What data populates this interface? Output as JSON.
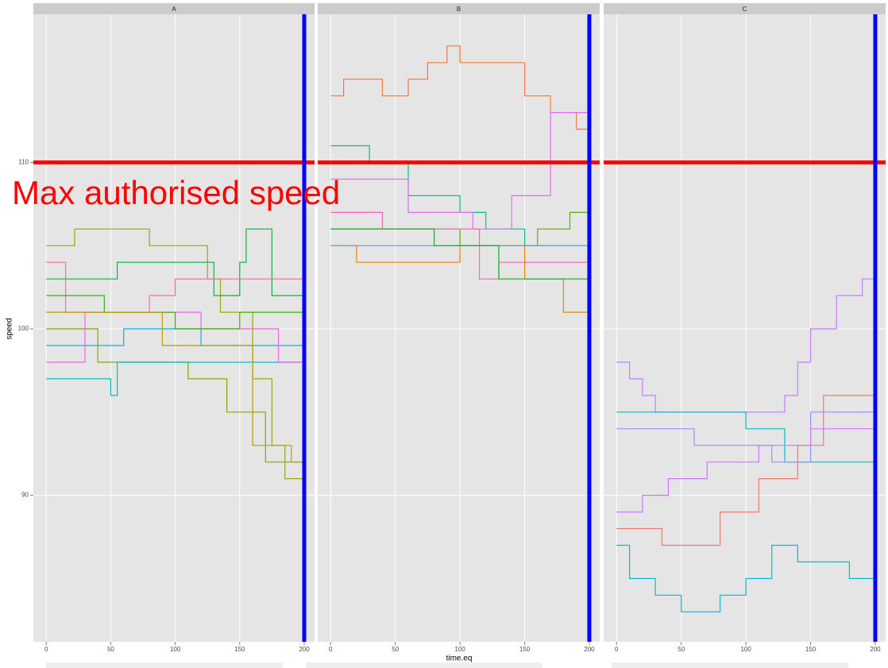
{
  "chart_data": {
    "type": "line",
    "xlabel": "time.eq",
    "ylabel": "speed",
    "xlim": [
      -10,
      208
    ],
    "ylim": [
      81.2,
      118.9
    ],
    "xticks": [
      0,
      50,
      100,
      150,
      200
    ],
    "yticks": [
      90,
      100,
      110
    ],
    "grid": true,
    "hline": {
      "value": 110,
      "color": "#ff0000"
    },
    "vline": {
      "value": 200,
      "color": "#0000ff"
    },
    "annotation": {
      "text": "Max authorised speed",
      "color": "#ff0000"
    },
    "facets": [
      {
        "label": "A",
        "series": [
          {
            "color": "#a3a500",
            "x": [
              0,
              22,
              22,
              80,
              80,
              125,
              125,
              135,
              135,
              160,
              160,
              175,
              175,
              185,
              185,
              200
            ],
            "values": [
              105,
              105,
              106,
              106,
              105,
              105,
              103,
              103,
              101,
              101,
              97,
              97,
              93,
              93,
              91,
              91
            ]
          },
          {
            "color": "#00ba38",
            "x": [
              0,
              55,
              55,
              130,
              130,
              150,
              150,
              155,
              155,
              175,
              175,
              200
            ],
            "values": [
              103,
              103,
              104,
              104,
              102,
              102,
              104,
              104,
              106,
              106,
              102,
              102
            ]
          },
          {
            "color": "#ff67a4",
            "x": [
              0,
              15,
              15,
              80,
              80,
              100,
              100,
              200
            ],
            "values": [
              104,
              104,
              101,
              101,
              102,
              102,
              103,
              103
            ]
          },
          {
            "color": "#7cae00",
            "x": [
              0,
              40,
              40,
              110,
              110,
              140,
              140,
              170,
              170,
              200
            ],
            "values": [
              100,
              100,
              98,
              98,
              97,
              97,
              95,
              95,
              92,
              92
            ]
          },
          {
            "color": "#00bfc4",
            "x": [
              0,
              50,
              50,
              55,
              55,
              200
            ],
            "values": [
              97,
              97,
              96,
              96,
              98,
              98
            ]
          },
          {
            "color": "#00b4f0",
            "x": [
              0,
              60,
              60,
              120,
              120,
              200
            ],
            "values": [
              99,
              99,
              100,
              100,
              99,
              99
            ]
          },
          {
            "color": "#f564e3",
            "x": [
              0,
              30,
              30,
              120,
              120,
              180,
              180,
              200
            ],
            "values": [
              98,
              98,
              101,
              101,
              100,
              100,
              98,
              98
            ]
          },
          {
            "color": "#39b600",
            "x": [
              0,
              45,
              45,
              100,
              100,
              150,
              150,
              200
            ],
            "values": [
              102,
              102,
              101,
              101,
              100,
              100,
              101,
              101
            ]
          },
          {
            "color": "#b79f00",
            "x": [
              0,
              90,
              90,
              160,
              160,
              190,
              190,
              200
            ],
            "values": [
              101,
              101,
              99,
              99,
              93,
              93,
              92,
              92
            ]
          }
        ]
      },
      {
        "label": "B",
        "series": [
          {
            "color": "#f07a3c",
            "x": [
              0,
              10,
              10,
              40,
              40,
              60,
              60,
              75,
              75,
              90,
              90,
              100,
              100,
              150,
              150,
              170,
              170,
              190,
              190,
              200
            ],
            "values": [
              114,
              114,
              115,
              115,
              114,
              114,
              115,
              115,
              116,
              116,
              117,
              117,
              116,
              116,
              114,
              114,
              113,
              113,
              112,
              112
            ]
          },
          {
            "color": "#00c08b",
            "x": [
              0,
              30,
              30,
              60,
              60,
              100,
              100,
              120,
              120,
              150,
              150,
              200
            ],
            "values": [
              111,
              111,
              110,
              110,
              108,
              108,
              107,
              107,
              106,
              106,
              105,
              105
            ]
          },
          {
            "color": "#e76bf3",
            "x": [
              0,
              60,
              60,
              110,
              110,
              140,
              140,
              170,
              170,
              200
            ],
            "values": [
              109,
              109,
              107,
              107,
              106,
              106,
              108,
              108,
              113,
              113
            ]
          },
          {
            "color": "#53b400",
            "x": [
              0,
              100,
              100,
              160,
              160,
              185,
              185,
              200
            ],
            "values": [
              106,
              106,
              105,
              105,
              106,
              106,
              107,
              107
            ]
          },
          {
            "color": "#e58700",
            "x": [
              0,
              20,
              20,
              100,
              100,
              150,
              150,
              180,
              180,
              200
            ],
            "values": [
              105,
              105,
              104,
              104,
              105,
              105,
              103,
              103,
              101,
              101
            ]
          },
          {
            "color": "#619cff",
            "x": [
              0,
              200
            ],
            "values": [
              105,
              105
            ]
          },
          {
            "color": "#ff62bc",
            "x": [
              0,
              40,
              40,
              115,
              115,
              130,
              130,
              200
            ],
            "values": [
              107,
              107,
              106,
              106,
              103,
              103,
              104,
              104
            ]
          },
          {
            "color": "#00b81f",
            "x": [
              0,
              80,
              80,
              130,
              130,
              200
            ],
            "values": [
              106,
              106,
              105,
              105,
              103,
              103
            ]
          }
        ]
      },
      {
        "label": "C",
        "series": [
          {
            "color": "#c77cff",
            "x": [
              0,
              10,
              10,
              20,
              20,
              30,
              30,
              130,
              130,
              140,
              140,
              150,
              150,
              170,
              170,
              190,
              190,
              200
            ],
            "values": [
              98,
              98,
              97,
              97,
              96,
              96,
              95,
              95,
              96,
              96,
              98,
              98,
              100,
              100,
              102,
              102,
              103,
              103
            ]
          },
          {
            "color": "#00bfc4",
            "x": [
              0,
              100,
              100,
              130,
              130,
              200
            ],
            "values": [
              95,
              95,
              94,
              94,
              92,
              92
            ]
          },
          {
            "color": "#9590ff",
            "x": [
              0,
              60,
              60,
              120,
              120,
              150,
              150,
              200
            ],
            "values": [
              94,
              94,
              93,
              93,
              92,
              92,
              95,
              95
            ]
          },
          {
            "color": "#d575fe",
            "x": [
              0,
              20,
              20,
              40,
              40,
              70,
              70,
              110,
              110,
              150,
              150,
              200
            ],
            "values": [
              89,
              89,
              90,
              90,
              91,
              91,
              92,
              92,
              93,
              93,
              94,
              94
            ]
          },
          {
            "color": "#f8766d",
            "x": [
              0,
              35,
              35,
              80,
              80,
              110,
              110,
              140,
              140,
              160,
              160,
              200
            ],
            "values": [
              88,
              88,
              87,
              87,
              89,
              89,
              91,
              91,
              93,
              93,
              96,
              96
            ]
          },
          {
            "color": "#00bcd8",
            "x": [
              0,
              10,
              10,
              30,
              30,
              50,
              50,
              80,
              80,
              100,
              100,
              120,
              120,
              140,
              140,
              180,
              180,
              200
            ],
            "values": [
              87,
              87,
              85,
              85,
              84,
              84,
              83,
              83,
              84,
              84,
              85,
              85,
              87,
              87,
              86,
              86,
              85,
              85
            ]
          }
        ]
      }
    ]
  }
}
